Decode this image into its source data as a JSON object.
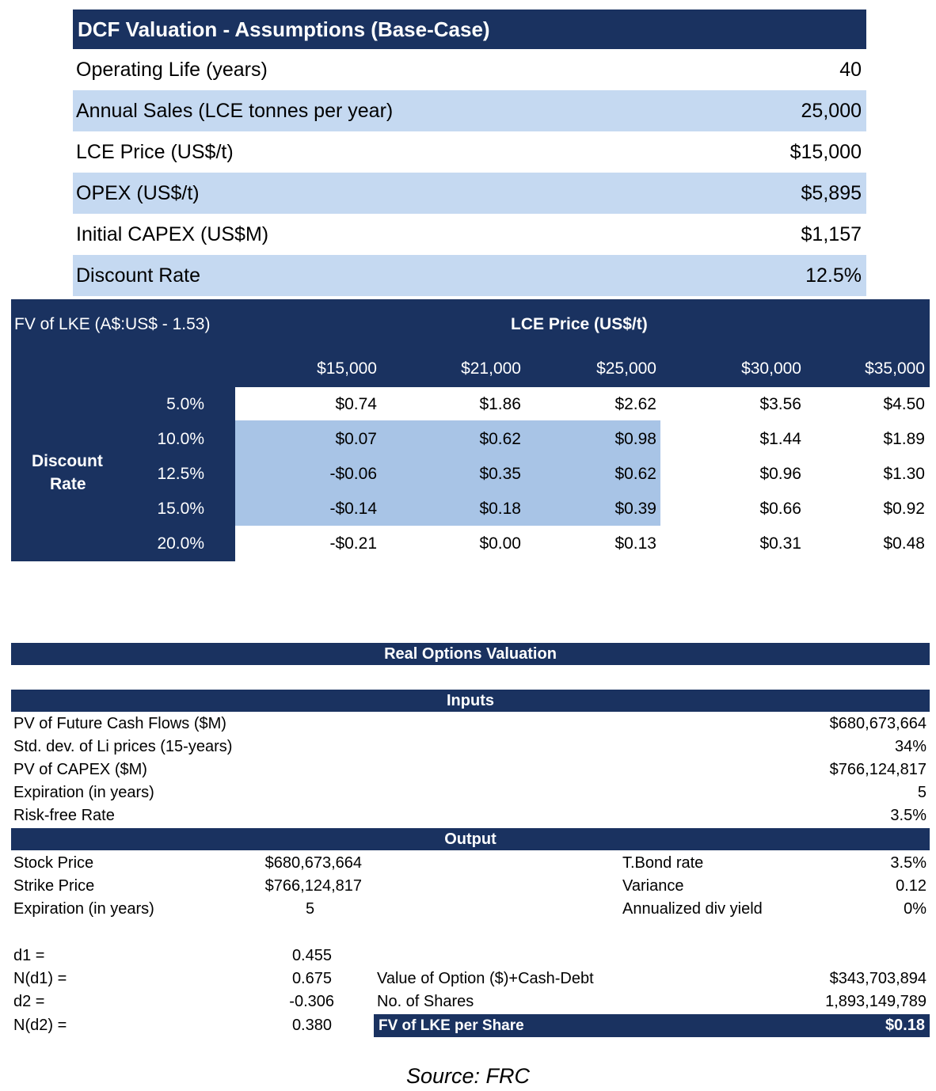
{
  "assumptions": {
    "title": "DCF Valuation - Assumptions (Base-Case)",
    "rows": [
      {
        "label": "Operating Life (years)",
        "value": "40"
      },
      {
        "label": "Annual Sales (LCE tonnes per year)",
        "value": "25,000"
      },
      {
        "label": "LCE Price (US$/t)",
        "value": "$15,000"
      },
      {
        "label": "OPEX (US$/t)",
        "value": "$5,895"
      },
      {
        "label": "Initial CAPEX (US$M)",
        "value": "$1,157"
      },
      {
        "label": "Discount Rate",
        "value": "12.5%"
      }
    ]
  },
  "sensitivity": {
    "title": "FV of LKE (A$:US$ - 1.53)",
    "col_header": "LCE Price (US$/t)",
    "row_header_line1": "Discount",
    "row_header_line2": "Rate",
    "prices": [
      "$15,000",
      "$21,000",
      "$25,000",
      "$30,000",
      "$35,000"
    ],
    "rates": [
      "5.0%",
      "10.0%",
      "12.5%",
      "15.0%",
      "20.0%"
    ],
    "values": [
      [
        "$0.74",
        "$1.86",
        "$2.62",
        "$3.56",
        "$4.50"
      ],
      [
        "$0.07",
        "$0.62",
        "$0.98",
        "$1.44",
        "$1.89"
      ],
      [
        "-$0.06",
        "$0.35",
        "$0.62",
        "$0.96",
        "$1.30"
      ],
      [
        "-$0.14",
        "$0.18",
        "$0.39",
        "$0.66",
        "$0.92"
      ],
      [
        "-$0.21",
        "$0.00",
        "$0.13",
        "$0.31",
        "$0.48"
      ]
    ]
  },
  "real_options": {
    "title": "Real Options Valuation",
    "inputs_title": "Inputs",
    "inputs": [
      {
        "label": "PV of Future Cash Flows ($M)",
        "value": "$680,673,664"
      },
      {
        "label": "Std. dev. of Li prices (15-years)",
        "value": "34%"
      },
      {
        "label": "PV of CAPEX ($M)",
        "value": "$766,124,817"
      },
      {
        "label": "Expiration (in years)",
        "value": "5"
      },
      {
        "label": "Risk-free Rate",
        "value": "3.5%"
      }
    ],
    "output_title": "Output",
    "output_left": [
      {
        "label": "Stock Price",
        "value": "$680,673,664"
      },
      {
        "label": "Strike Price",
        "value": "$766,124,817"
      },
      {
        "label": "Expiration (in years)",
        "value": "5"
      }
    ],
    "output_right": [
      {
        "label": "T.Bond rate",
        "value": "3.5%"
      },
      {
        "label": "Variance",
        "value": "0.12"
      },
      {
        "label": "Annualized div yield",
        "value": "0%"
      }
    ],
    "d_values": [
      {
        "label": "d1 =",
        "value": "0.455"
      },
      {
        "label": "N(d1) =",
        "value": "0.675"
      },
      {
        "label": "d2 =",
        "value": "-0.306"
      },
      {
        "label": "N(d2) =",
        "value": "0.380"
      }
    ],
    "option_value_label": "Value of Option ($)+Cash-Debt",
    "option_value": "$343,703,894",
    "shares_label": "No. of Shares",
    "shares_value": "1,893,149,789",
    "fv_label": "FV of LKE per Share",
    "fv_value": "$0.18"
  },
  "source": "Source: FRC",
  "colors": {
    "navy": "#1a3260",
    "light_blue": "#c5d9f1",
    "mid_blue": "#a8c4e6"
  }
}
